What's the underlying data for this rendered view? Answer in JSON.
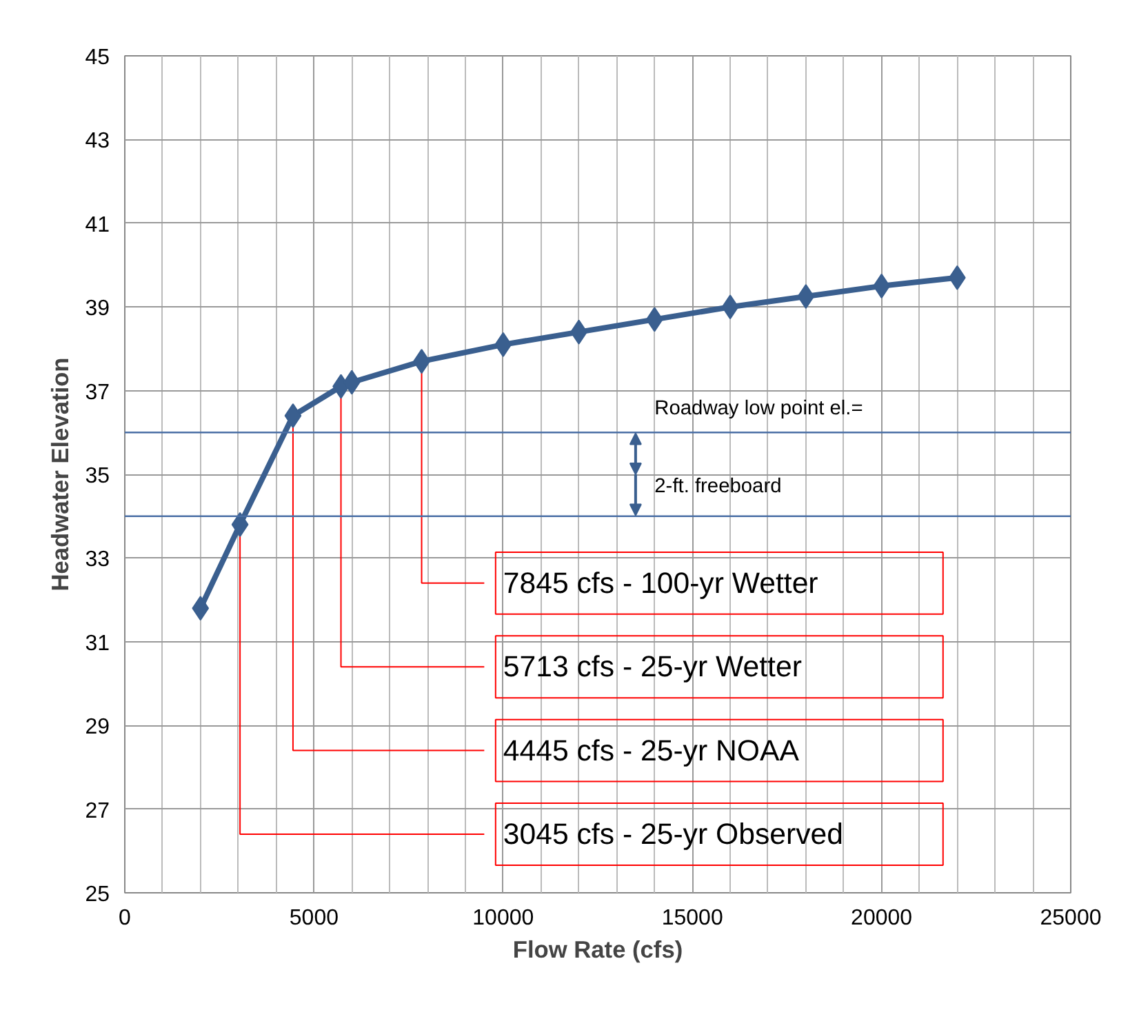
{
  "chart_data": {
    "type": "line",
    "xlabel": "Flow Rate (cfs)",
    "ylabel": "Headwater Elevation",
    "x": [
      2000,
      3045,
      4445,
      5713,
      6000,
      7845,
      10000,
      12000,
      14000,
      16000,
      18000,
      20000,
      22000
    ],
    "series": [
      {
        "color": "#3a5f8f",
        "values": [
          31.8,
          33.8,
          36.4,
          37.1,
          37.2,
          37.7,
          38.1,
          38.4,
          38.7,
          39.0,
          39.25,
          39.5,
          39.7
        ]
      }
    ],
    "marker": "diamond",
    "line_style": "solid",
    "grid": true,
    "xlim": [
      0,
      25000
    ],
    "xticks": [
      0,
      5000,
      10000,
      15000,
      20000,
      25000
    ],
    "ylim": [
      25,
      45
    ],
    "yticks": [
      25,
      27,
      29,
      31,
      33,
      35,
      37,
      39,
      41,
      43,
      45
    ],
    "ref_lines": [
      {
        "axis": "y",
        "value": 36,
        "label": "Roadway low point el.=",
        "color": "#4a6fa5"
      },
      {
        "axis": "y",
        "value": 34,
        "label": "2-ft. freeboard",
        "color": "#4a6fa5"
      }
    ],
    "annotations": [
      {
        "text": "7845 cfs - 100-yr Wetter",
        "x": 7845,
        "y": 37.7
      },
      {
        "text": "5713 cfs - 25-yr Wetter",
        "x": 5713,
        "y": 37.1
      },
      {
        "text": "4445 cfs - 25-yr NOAA",
        "x": 4445,
        "y": 36.4
      },
      {
        "text": "3045 cfs - 25-yr Observed",
        "x": 3045,
        "y": 33.8
      }
    ]
  }
}
